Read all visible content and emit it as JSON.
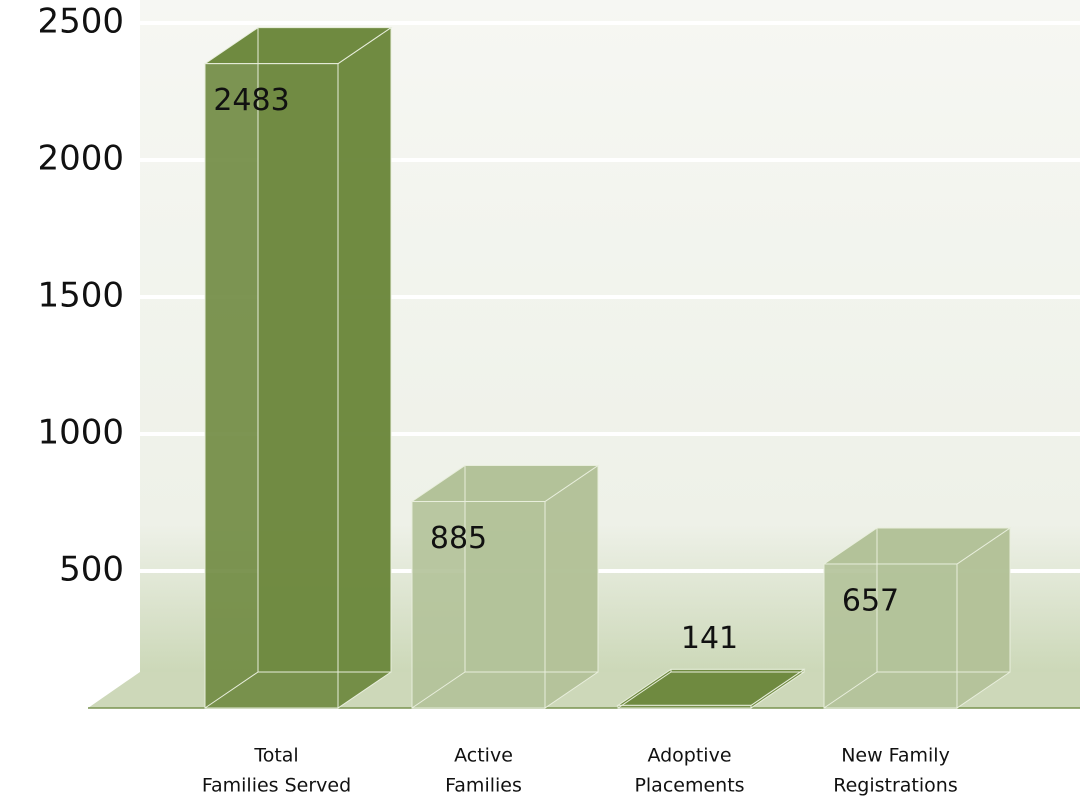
{
  "chart_data": {
    "type": "bar3d",
    "categories": [
      [
        "Total",
        "Families Served"
      ],
      [
        "Active",
        "Families"
      ],
      [
        "Adoptive",
        "Placements"
      ],
      [
        "New Family",
        "Registrations"
      ]
    ],
    "values": [
      2483,
      885,
      141,
      657
    ],
    "colors": [
      "#6f8a40",
      "#b3c299",
      "#6f8a40",
      "#b3c299"
    ],
    "ylim": [
      0,
      2500
    ],
    "yticks": [
      500,
      1000,
      1500,
      2000,
      2500
    ],
    "grid": true
  }
}
